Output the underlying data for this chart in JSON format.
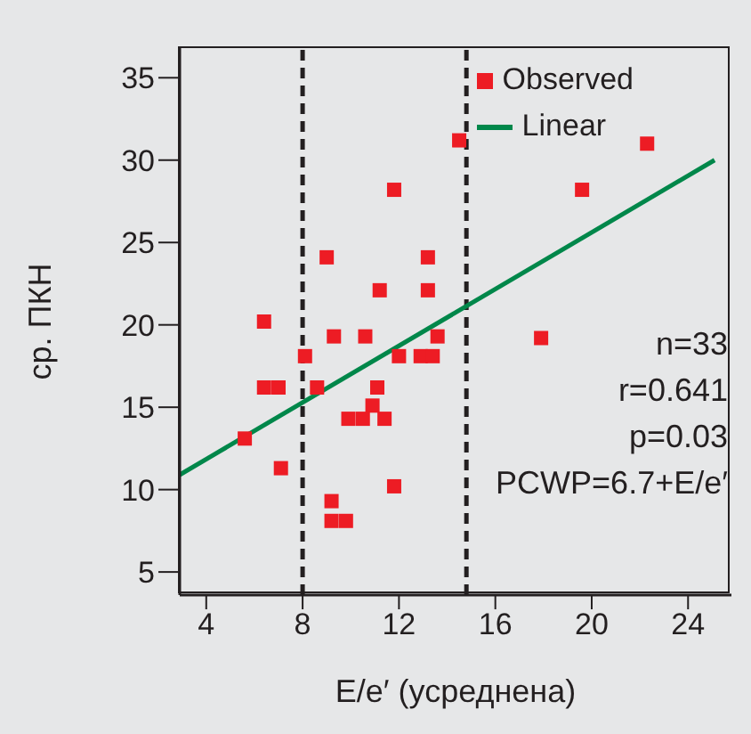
{
  "chart_data": {
    "type": "scatter",
    "xlabel": "E/e′ (усреднена)",
    "ylabel": "ср. ПКН",
    "xlim": [
      2.9,
      25.8
    ],
    "xticks": [
      4,
      8,
      12,
      16,
      20,
      24
    ],
    "ylim": [
      3.6,
      36.8
    ],
    "yticks": [
      5,
      10,
      15,
      20,
      25,
      30,
      35
    ],
    "legend": "top right",
    "series": [
      {
        "name": "Observed",
        "marker": "square",
        "color": "#ed1c24",
        "x": [
          14.5,
          11.8,
          9.0,
          13.2,
          11.2,
          13.2,
          6.4,
          9.3,
          10.6,
          13.6,
          8.1,
          12.0,
          12.9,
          13.4,
          6.4,
          7.0,
          8.6,
          11.1,
          10.9,
          9.9,
          10.5,
          11.4,
          5.6,
          7.1,
          11.8,
          9.2,
          9.2,
          9.8,
          22.3,
          19.6,
          17.9
        ],
        "values": [
          31.2,
          28.2,
          24.1,
          24.1,
          22.1,
          22.1,
          20.2,
          19.3,
          19.3,
          19.3,
          18.1,
          18.1,
          18.1,
          18.1,
          16.2,
          16.2,
          16.2,
          16.2,
          15.1,
          14.3,
          14.3,
          14.3,
          13.1,
          11.3,
          10.2,
          9.3,
          8.1,
          8.1,
          31.0,
          28.2,
          19.2
        ]
      },
      {
        "name": "Linear",
        "type": "line",
        "color": "#00874a",
        "line_style": "solid",
        "x": [
          2.9,
          25.1
        ],
        "values": [
          10.9,
          30.0
        ]
      }
    ],
    "ref_lines": [
      {
        "axis": "x",
        "value": 8,
        "color": "#231f20",
        "line_style": "dashed"
      },
      {
        "axis": "x",
        "value": 14.8,
        "color": "#231f20",
        "line_style": "dashed"
      }
    ],
    "annotations": [
      "n=33",
      "r=0.641",
      "p=0.03",
      "PCWP=6.7+E/e′"
    ]
  }
}
